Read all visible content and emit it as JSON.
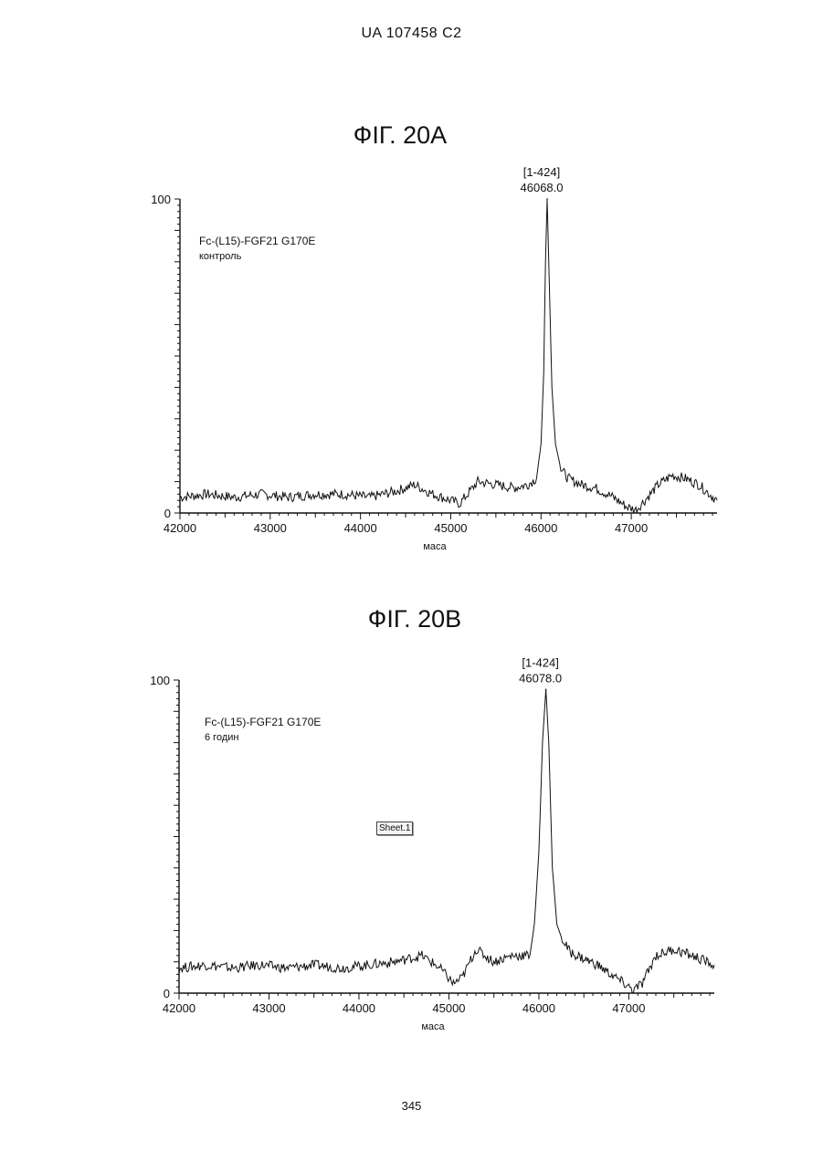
{
  "document": {
    "header": "UA   107458   C2",
    "page_number": "345",
    "floating_tag": "Sheet.1"
  },
  "chart_data": [
    {
      "type": "line",
      "title": "ФІГ. 20А",
      "sample_label": "Fc-(L15)-FGF21 G170E",
      "sample_sublabel": "контроль",
      "xlabel": "маса",
      "ylabel": "",
      "xlim": [
        42000,
        47950
      ],
      "ylim": [
        0,
        100
      ],
      "x_ticks": [
        42000,
        43000,
        44000,
        45000,
        46000,
        47000
      ],
      "y_ticks": [
        0,
        100
      ],
      "peak": {
        "x": 46068.0,
        "y": 100,
        "range_label": "[1-424]",
        "mass_label": "46068.0"
      },
      "series": [
        {
          "x": [
            42000,
            42300,
            42600,
            42900,
            43200,
            43500,
            43800,
            44100,
            44400,
            44600,
            44800,
            45000,
            45100,
            45300,
            45500,
            45700,
            45850,
            45950,
            46000,
            46030,
            46050,
            46068,
            46090,
            46120,
            46160,
            46220,
            46300,
            46450,
            46600,
            46800,
            46950,
            47050,
            47150,
            47300,
            47450,
            47600,
            47750,
            47950
          ],
          "y": [
            5,
            6,
            5,
            6,
            5,
            6,
            6,
            5,
            7,
            9,
            6,
            4,
            3,
            10,
            9,
            8,
            9,
            11,
            22,
            45,
            80,
            100,
            75,
            40,
            22,
            14,
            11,
            9,
            8,
            5,
            2,
            1,
            4,
            9,
            12,
            11,
            9,
            4
          ]
        }
      ]
    },
    {
      "type": "line",
      "title": "ФІГ. 20В",
      "sample_label": "Fc-(L15)-FGF21 G170E",
      "sample_sublabel": "6 годин",
      "xlabel": "маса",
      "ylabel": "",
      "xlim": [
        42000,
        47950
      ],
      "ylim": [
        0,
        100
      ],
      "x_ticks": [
        42000,
        43000,
        44000,
        45000,
        46000,
        47000
      ],
      "y_ticks": [
        0,
        100
      ],
      "peak": {
        "x": 46078.0,
        "y": 97,
        "range_label": "[1-424]",
        "mass_label": "46078.0"
      },
      "series": [
        {
          "x": [
            42000,
            42300,
            42600,
            42900,
            43200,
            43500,
            43800,
            44100,
            44400,
            44700,
            44900,
            45050,
            45150,
            45300,
            45500,
            45700,
            45900,
            45950,
            46000,
            46040,
            46078,
            46110,
            46150,
            46200,
            46260,
            46350,
            46500,
            46650,
            46800,
            46950,
            47050,
            47150,
            47300,
            47500,
            47700,
            47950
          ],
          "y": [
            8,
            9,
            8,
            9,
            8,
            9,
            8,
            9,
            10,
            12,
            8,
            3,
            5,
            14,
            10,
            12,
            12,
            22,
            45,
            80,
            97,
            80,
            40,
            22,
            17,
            13,
            11,
            9,
            6,
            3,
            1,
            3,
            12,
            14,
            12,
            9
          ]
        }
      ]
    }
  ]
}
